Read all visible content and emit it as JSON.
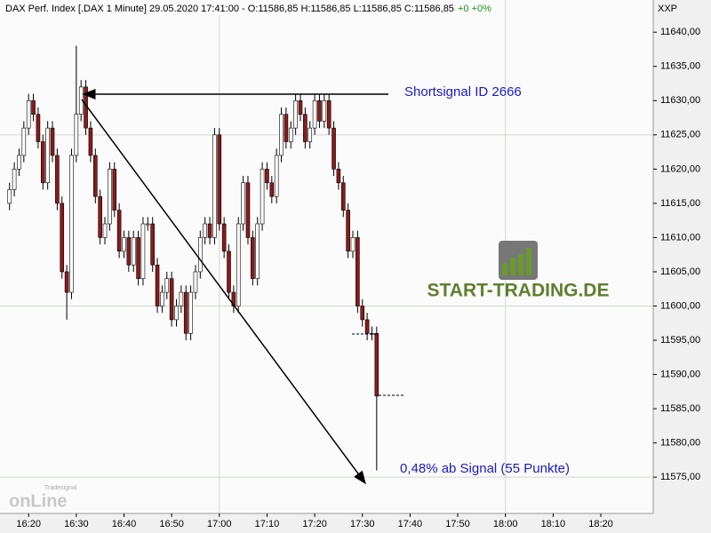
{
  "chart_data": {
    "type": "candlestick",
    "title": "DAX Perf. Index [.DAX  1 Minute] 29.05.2020 17:41:00 - O:11586,85 H:11586,85 L:11586,85 C:11586,85",
    "change": "+0 +0%",
    "axis_symbol": "XXP",
    "watermark": "START-TRADING.DE",
    "logo_top": "Tradesignal",
    "logo_bottom": "onLine",
    "annotations": [
      "Shortsignal ID 2666",
      "0,48% ab Signal (55 Punkte)"
    ],
    "x": [
      "16:16",
      "16:17",
      "16:18",
      "16:19",
      "16:20",
      "16:21",
      "16:22",
      "16:23",
      "16:24",
      "16:25",
      "16:26",
      "16:27",
      "16:28",
      "16:29",
      "16:30",
      "16:31",
      "16:32",
      "16:33",
      "16:34",
      "16:35",
      "16:36",
      "16:37",
      "16:38",
      "16:39",
      "16:40",
      "16:41",
      "16:42",
      "16:43",
      "16:44",
      "16:45",
      "16:46",
      "16:47",
      "16:48",
      "16:49",
      "16:50",
      "16:51",
      "16:52",
      "16:53",
      "16:54",
      "16:55",
      "16:56",
      "16:57",
      "16:58",
      "16:59",
      "17:00",
      "17:01",
      "17:02",
      "17:03",
      "17:04",
      "17:05",
      "17:06",
      "17:07",
      "17:08",
      "17:09",
      "17:10",
      "17:11",
      "17:12",
      "17:13",
      "17:14",
      "17:15",
      "17:16",
      "17:17",
      "17:18",
      "17:19",
      "17:20",
      "17:21",
      "17:22",
      "17:23",
      "17:24",
      "17:25",
      "17:26",
      "17:27",
      "17:28",
      "17:29",
      "17:30",
      "17:31",
      "17:32",
      "17:33"
    ],
    "open": [
      11615,
      11617,
      11620,
      11622,
      11626,
      11630,
      11628,
      11624,
      11618,
      11626,
      11622,
      11615,
      11605,
      11602,
      11622,
      11628,
      11632,
      11626,
      11622,
      11616,
      11610,
      11612,
      11620,
      11614,
      11608,
      11610,
      11606,
      11610,
      11604,
      11612,
      11612,
      11606,
      11600,
      11602,
      11604,
      11598,
      11600,
      11602,
      11596,
      11602,
      11605,
      11610,
      11612,
      11610,
      11625,
      11612,
      11608,
      11602,
      11600,
      11612,
      11618,
      11610,
      11604,
      11612,
      11620,
      11618,
      11616,
      11622,
      11628,
      11624,
      11626,
      11630,
      11628,
      11624,
      11626,
      11630,
      11627,
      11630,
      11626,
      11620,
      11618,
      11614,
      11608,
      11610,
      11600,
      11598,
      11596,
      11596
    ],
    "high": [
      11618,
      11621,
      11623,
      11627,
      11631,
      11631,
      11629,
      11625,
      11627,
      11627,
      11623,
      11616,
      11606,
      11623,
      11638,
      11633,
      11633,
      11627,
      11623,
      11617,
      11613,
      11621,
      11621,
      11615,
      11611,
      11611,
      11611,
      11611,
      11613,
      11613,
      11613,
      11607,
      11603,
      11605,
      11605,
      11601,
      11603,
      11603,
      11603,
      11606,
      11611,
      11613,
      11613,
      11626,
      11626,
      11613,
      11609,
      11603,
      11613,
      11619,
      11619,
      11611,
      11613,
      11621,
      11621,
      11619,
      11623,
      11629,
      11629,
      11627,
      11631,
      11631,
      11629,
      11627,
      11631,
      11631,
      11631,
      11631,
      11627,
      11621,
      11619,
      11615,
      11611,
      11611,
      11601,
      11599,
      11597,
      11597
    ],
    "low": [
      11614,
      11616,
      11619,
      11621,
      11625,
      11627,
      11623,
      11617,
      11617,
      11621,
      11614,
      11604,
      11598,
      11601,
      11621,
      11627,
      11625,
      11621,
      11615,
      11609,
      11609,
      11611,
      11613,
      11607,
      11607,
      11605,
      11605,
      11603,
      11603,
      11611,
      11605,
      11599,
      11599,
      11601,
      11597,
      11597,
      11599,
      11595,
      11595,
      11601,
      11604,
      11609,
      11609,
      11609,
      11611,
      11607,
      11601,
      11599,
      11599,
      11611,
      11609,
      11603,
      11603,
      11611,
      11617,
      11615,
      11615,
      11621,
      11623,
      11623,
      11625,
      11627,
      11623,
      11623,
      11625,
      11626,
      11626,
      11625,
      11619,
      11617,
      11613,
      11607,
      11607,
      11599,
      11597,
      11595,
      11595,
      11576
    ],
    "close": [
      11617,
      11620,
      11622,
      11626,
      11630,
      11628,
      11624,
      11618,
      11626,
      11622,
      11615,
      11605,
      11602,
      11622,
      11628,
      11632,
      11626,
      11622,
      11616,
      11610,
      11612,
      11620,
      11614,
      11608,
      11610,
      11606,
      11610,
      11604,
      11612,
      11612,
      11606,
      11600,
      11602,
      11604,
      11598,
      11600,
      11602,
      11596,
      11602,
      11605,
      11610,
      11612,
      11610,
      11625,
      11612,
      11608,
      11602,
      11600,
      11612,
      11618,
      11610,
      11604,
      11612,
      11620,
      11618,
      11616,
      11622,
      11628,
      11624,
      11626,
      11630,
      11628,
      11624,
      11626,
      11630,
      11627,
      11630,
      11626,
      11620,
      11618,
      11614,
      11608,
      11610,
      11600,
      11598,
      11596,
      11596,
      11586.85
    ],
    "up_color": "#ffffff",
    "down_color": "#8b1a1a",
    "xlim": [
      "16:14",
      "18:31"
    ],
    "xticks": [
      "16:20",
      "16:30",
      "16:40",
      "16:50",
      "17:00",
      "17:10",
      "17:20",
      "17:30",
      "17:40",
      "17:50",
      "18:00",
      "18:10",
      "18:20"
    ],
    "ylim": [
      11569.7,
      11644.7
    ],
    "yticks": [
      {
        "value": 11575,
        "label": "11575,00"
      },
      {
        "value": 11580,
        "label": "11580,00"
      },
      {
        "value": 11585,
        "label": "11585,00"
      },
      {
        "value": 11590,
        "label": "11590,00"
      },
      {
        "value": 11595,
        "label": "11595,00"
      },
      {
        "value": 11600,
        "label": "11600,00"
      },
      {
        "value": 11605,
        "label": "11605,00"
      },
      {
        "value": 11610,
        "label": "11610,00"
      },
      {
        "value": 11615,
        "label": "11615,00"
      },
      {
        "value": 11620,
        "label": "11620,00"
      },
      {
        "value": 11625,
        "label": "11625,00"
      },
      {
        "value": 11630,
        "label": "11630,00"
      },
      {
        "value": 11635,
        "label": "11635,00"
      },
      {
        "value": 11640,
        "label": "11640,00"
      }
    ],
    "grid_y": [
      11575,
      11600,
      11625
    ],
    "grid_x": [
      "17:00",
      "18:00"
    ]
  }
}
